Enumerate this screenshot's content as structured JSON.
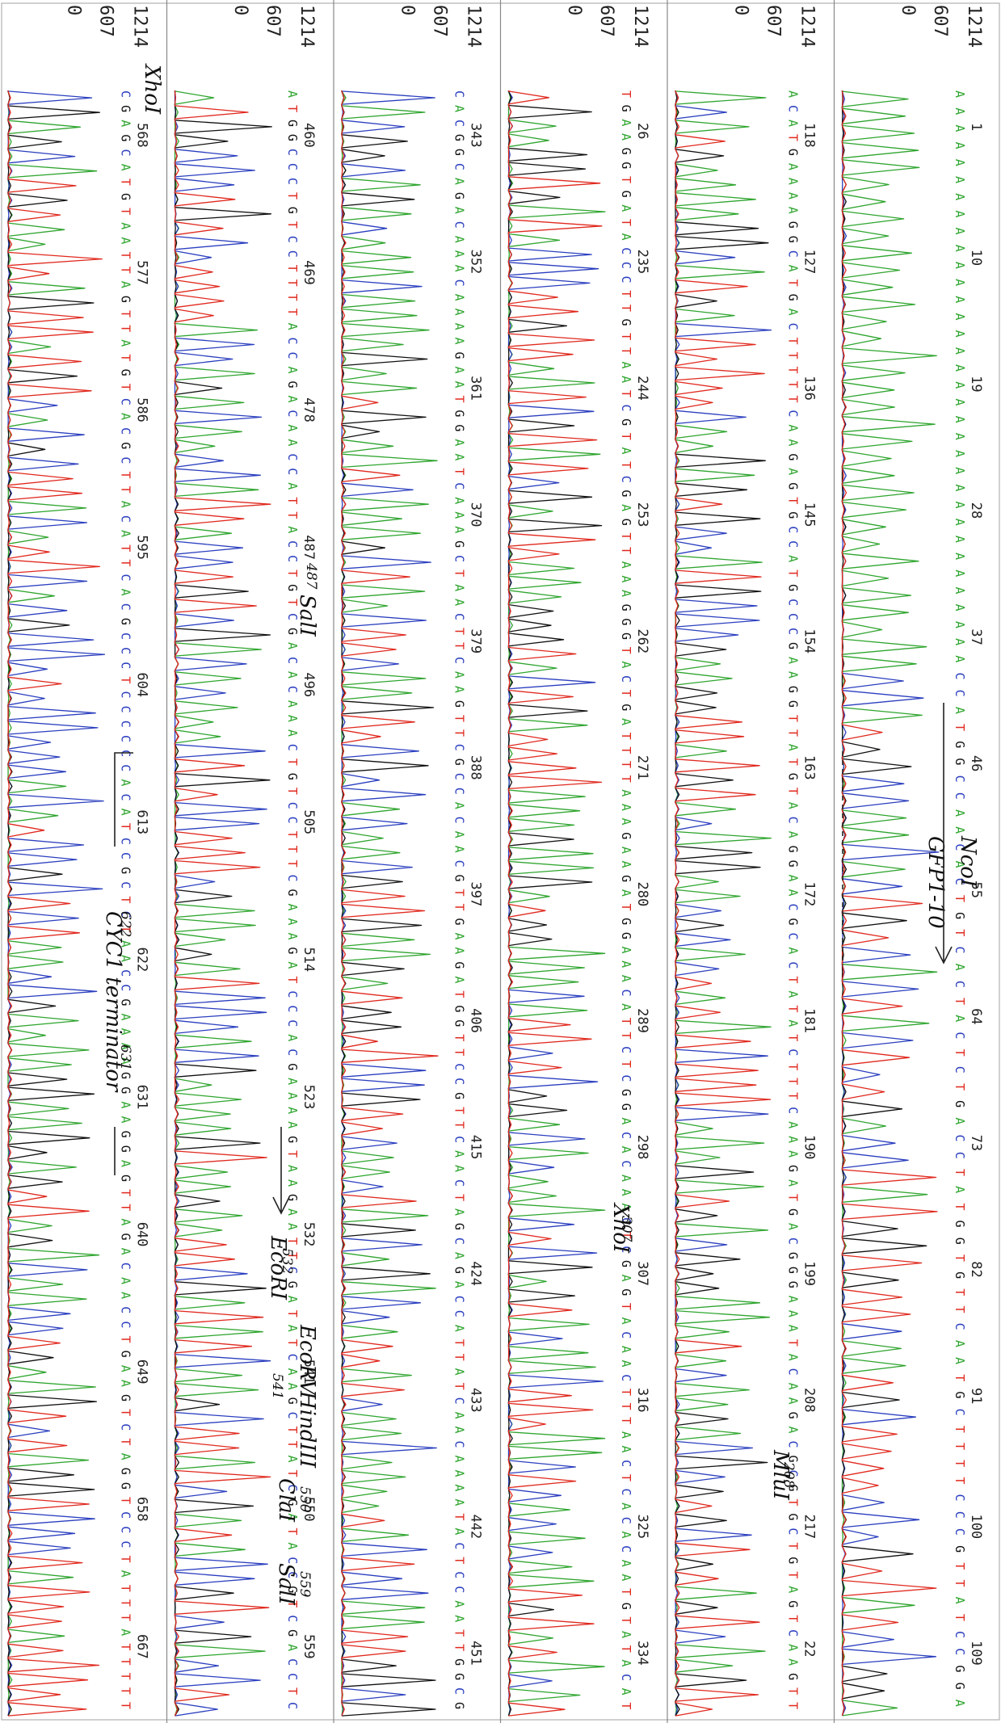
{
  "chart_data": {
    "type": "line",
    "title": "",
    "ylabel_ticks": [
      "1214",
      "607",
      "0"
    ],
    "ylim": [
      0,
      1214
    ],
    "series_colors": {
      "A": "#2fa52f",
      "C": "#2b3fbf",
      "G": "#111111",
      "T": "#e0291e"
    },
    "panels": [
      {
        "positions": [
          "1",
          "10",
          "19",
          "28",
          "37",
          "46",
          "55",
          "64",
          "73",
          "82",
          "91",
          "100",
          "109"
        ],
        "bases": "AAAAAAAAAAAAAAAAAAAAAAAAAAAAAAAAAACCATGGCCAACACTGTCACTACTCTGACCTATGGTGTTCAATGCTTTTCCCGTTATCCGGA",
        "annotations": [
          "NcoI",
          "GFP1-10"
        ]
      },
      {
        "positions": [
          "118",
          "127",
          "136",
          "145",
          "154",
          "163",
          "172",
          "181",
          "190",
          "199",
          "208",
          "217",
          "22"
        ],
        "bases": "ACATGAAAAGGCATGACTTTTTCAAGAGTGCCATGCCCGAAGGTTATGTACAGGAACGCACTATATCTTTCAAAGATGACGGGAAATACAAGACGCGTGCTGTAGTCAAGTT",
        "annotations": [
          "208",
          "MluI"
        ]
      },
      {
        "positions": [
          "26",
          "235",
          "244",
          "253",
          "262",
          "271",
          "280",
          "289",
          "298",
          "307",
          "316",
          "325",
          "334"
        ],
        "bases": "TGAAGGTGATACCCTTGTTAATCGTATCGAGTTAAAGGGTACTGATTTTAAAGAAGATGGAAACATTCTCGGACACAAACTCGAGTACAACTTTAACTCACACAATGTATACAT",
        "annotations": [
          "307",
          "XhoI"
        ]
      },
      {
        "positions": [
          "343",
          "352",
          "361",
          "370",
          "379",
          "388",
          "397",
          "406",
          "415",
          "424",
          "433",
          "442",
          "451"
        ],
        "bases": "CACGGCAGACAAACAAAAGAATGGAATCAAAGCTAACTTCAAGTTCGCCACAACGTTGAAGATGGTTCCGTTCAACTAGCAGACCATTATCAACAAAATACTCCAATTGGCG",
        "annotations": []
      },
      {
        "positions": [
          "460",
          "469",
          "478",
          "487",
          "496",
          "505",
          "514",
          "523",
          "532",
          "541",
          "550",
          "559"
        ],
        "bases": "ATGGCCCTGTCCTTTTACCAGACAACCATTACCTGTCGACACAAACTGTCCTTTCGAAAGATCCCACGAAAAGTAAGAATTCGATATCAAGCTTATCGATACCGTCGACCTC",
        "annotations": [
          "487",
          "SalI",
          "532",
          "EcoRI",
          "541",
          "EcoRV",
          "HindIII",
          "550",
          "ClaI",
          "559",
          "SalI"
        ]
      },
      {
        "positions": [
          "568",
          "577",
          "586",
          "595",
          "604",
          "613",
          "622",
          "631",
          "640",
          "649",
          "658",
          "667"
        ],
        "bases": "CGAGCATGTAATTAGTTATGTCACGCTTACATTCACGCCCTCCCCCCACATCCGCTCTAACCGAAAAGGAAGGAGTTAGACAACCTGAAGTCTAGGTCCCTATTTATTTTT",
        "annotations": [
          "XhoI",
          "CYC1 terminator"
        ]
      }
    ]
  },
  "notes": {
    "nco": "NcoI",
    "gfp": "GFP1-10",
    "mlu_pos": "208",
    "mlu": "MluI",
    "xho1_pos": "307",
    "xho1": "XhoI",
    "sal1_pos": "487",
    "sal1": "SalI",
    "eco_pos": "532",
    "eco": "EcoRI",
    "ecov_pos": "541",
    "ecov": "EcoRV",
    "hind": "HindIII",
    "cla_pos": "550",
    "cla": "ClaI",
    "sal2_pos": "559",
    "sal2": "SalI",
    "xho2": "XhoI",
    "cyc_pos1": "622",
    "cyc_pos2": "631",
    "cyc": "CYC1 terminator"
  }
}
